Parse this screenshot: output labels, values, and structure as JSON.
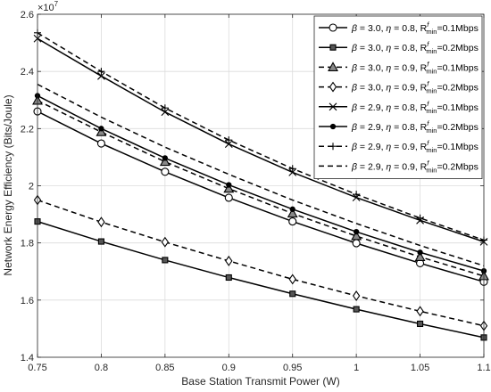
{
  "chart_data": {
    "type": "line",
    "xlabel": "Base Station Transmit Power (W)",
    "ylabel": "Network Energy Efficiency (Bits/Joule)",
    "y_exponent_label": "×10",
    "y_exponent_power": "7",
    "xlim": [
      0.75,
      1.1
    ],
    "ylim": [
      14000000.0,
      26000000.0
    ],
    "x_ticks": [
      0.75,
      0.8,
      0.85,
      0.9,
      0.95,
      1.0,
      1.05,
      1.1
    ],
    "x_tick_labels": [
      "0.75",
      "0.8",
      "0.85",
      "0.9",
      "0.95",
      "1",
      "1.05",
      "1.1"
    ],
    "y_ticks": [
      14000000.0,
      16000000.0,
      18000000.0,
      20000000.0,
      22000000.0,
      24000000.0,
      26000000.0
    ],
    "y_tick_labels": [
      "1.4",
      "1.6",
      "1.8",
      "2",
      "2.2",
      "2.4",
      "2.6"
    ],
    "grid": true,
    "legend_position": "top-right",
    "x": [
      0.75,
      0.8,
      0.85,
      0.9,
      0.95,
      1.0,
      1.05,
      1.1
    ],
    "series": [
      {
        "beta": "3.0",
        "eta": "0.8",
        "rmin": "=0.1Mbps",
        "style": "solid",
        "marker": "circle",
        "values": [
          22600000.0,
          21480000.0,
          20490000.0,
          19580000.0,
          18750000.0,
          17990000.0,
          17290000.0,
          16640000.0
        ]
      },
      {
        "beta": "3.0",
        "eta": "0.8",
        "rmin": "=0.2Mbps",
        "style": "solid",
        "marker": "square",
        "values": [
          18750000.0,
          18050000.0,
          17400000.0,
          16790000.0,
          16220000.0,
          15680000.0,
          15170000.0,
          14690000.0
        ]
      },
      {
        "beta": "3.0",
        "eta": "0.9",
        "rmin": "=0.1Mbps",
        "style": "dashed",
        "marker": "triangle",
        "values": [
          22980000.0,
          21880000.0,
          20840000.0,
          19900000.0,
          19030000.0,
          18240000.0,
          17510000.0,
          16840000.0
        ]
      },
      {
        "beta": "3.0",
        "eta": "0.9",
        "rmin": "=0.2Mbps",
        "style": "dashed",
        "marker": "diamond",
        "values": [
          19500000.0,
          18730000.0,
          18030000.0,
          17370000.0,
          16730000.0,
          16150000.0,
          15610000.0,
          15100000.0
        ]
      },
      {
        "beta": "2.9",
        "eta": "0.8",
        "rmin": "=0.1Mbps",
        "style": "solid",
        "marker": "x",
        "values": [
          25150000.0,
          23840000.0,
          22580000.0,
          21460000.0,
          20470000.0,
          19590000.0,
          18790000.0,
          18040000.0
        ]
      },
      {
        "beta": "2.9",
        "eta": "0.8",
        "rmin": "=0.2Mbps",
        "style": "solid",
        "marker": "dot",
        "values": [
          23150000.0,
          22000000.0,
          20970000.0,
          20030000.0,
          19180000.0,
          18390000.0,
          17670000.0,
          17020000.0
        ]
      },
      {
        "beta": "2.9",
        "eta": "0.9",
        "rmin": "=0.1Mbps",
        "style": "dashed",
        "marker": "plus",
        "values": [
          25350000.0,
          24000000.0,
          22720000.0,
          21600000.0,
          20600000.0,
          19700000.0,
          18870000.0,
          18100000.0
        ]
      },
      {
        "beta": "2.9",
        "eta": "0.9",
        "rmin": "=0.2Mbps",
        "style": "dashed",
        "marker": "none",
        "values": [
          23550000.0,
          22400000.0,
          21350000.0,
          20400000.0,
          19500000.0,
          18680000.0,
          17910000.0,
          17200000.0
        ]
      }
    ]
  }
}
